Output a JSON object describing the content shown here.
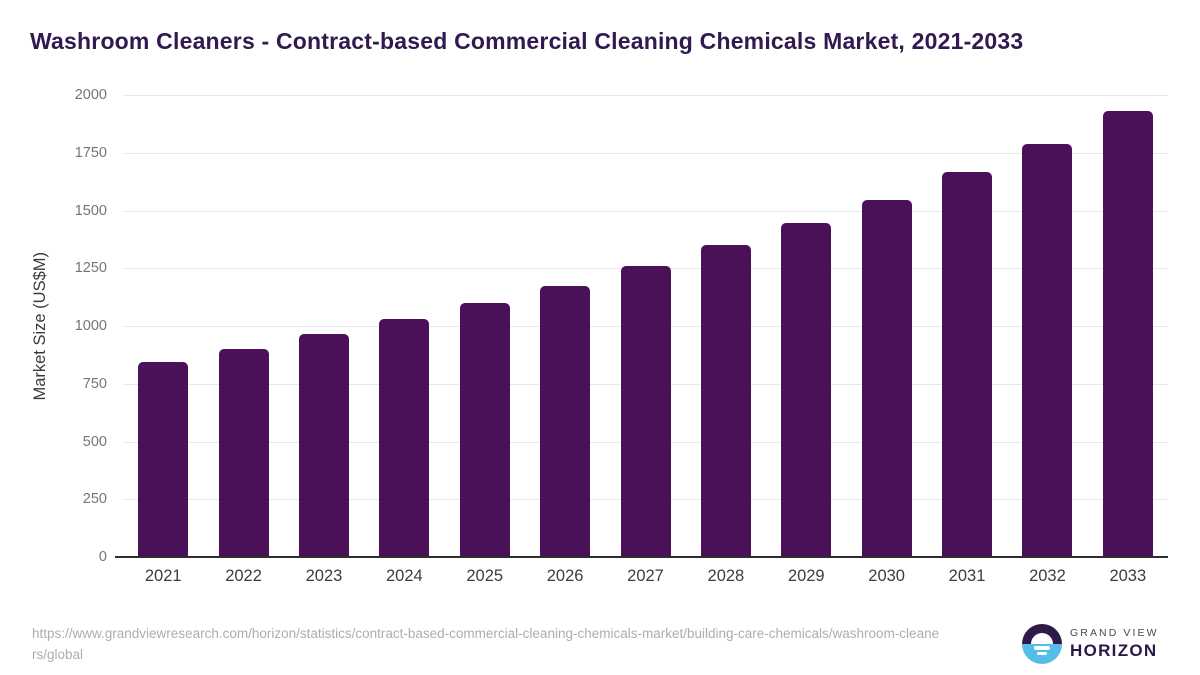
{
  "header": {
    "title": "Washroom Cleaners - Contract-based Commercial Cleaning Chemicals Market, 2021-2033"
  },
  "chart_data": {
    "type": "bar",
    "title": "Washroom Cleaners - Contract-based Commercial Cleaning Chemicals Market, 2021-2033",
    "categories": [
      "2021",
      "2022",
      "2023",
      "2024",
      "2025",
      "2026",
      "2027",
      "2028",
      "2029",
      "2030",
      "2031",
      "2032",
      "2033"
    ],
    "values": [
      845,
      900,
      965,
      1030,
      1100,
      1175,
      1260,
      1350,
      1445,
      1545,
      1665,
      1790,
      1930
    ],
    "xlabel": "",
    "ylabel": "Market Size (US$M)",
    "ylim": [
      0,
      2000
    ],
    "yticks": [
      0,
      250,
      500,
      750,
      1000,
      1250,
      1500,
      1750,
      2000
    ],
    "grid": true,
    "legend_position": "none",
    "bar_color": "#4a1158"
  },
  "footer": {
    "source_url": "https://www.grandviewresearch.com/horizon/statistics/contract-based-commercial-cleaning-chemicals-market/building-care-chemicals/washroom-cleaners/global",
    "logo": {
      "line1": "GRAND VIEW",
      "line2": "HORIZON"
    }
  },
  "colors": {
    "title": "#32194f",
    "bar": "#4a1158",
    "gridline": "#e7e7e7",
    "axis_line": "#2e2e2e",
    "y_tick": "#757575",
    "x_tick": "#3d3d3d",
    "url_text": "#adadad",
    "logo_top": "#2e1a47",
    "logo_bottom": "#55bde9"
  }
}
